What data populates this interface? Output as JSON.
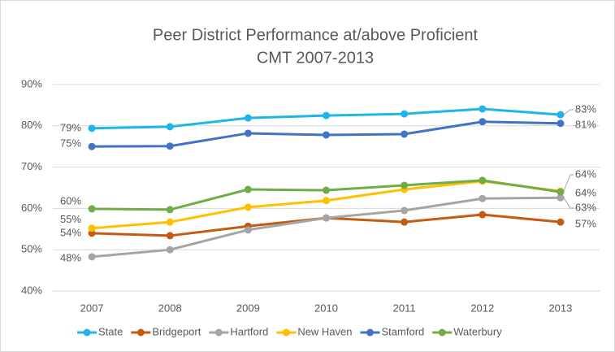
{
  "chart_data": {
    "type": "line",
    "title": "Peer District Performance at/above Proficient",
    "subtitle": "CMT 2007-2013",
    "categories": [
      "2007",
      "2008",
      "2009",
      "2010",
      "2011",
      "2012",
      "2013"
    ],
    "series": [
      {
        "name": "State",
        "color": "#1fb5e8",
        "values": [
          79.4,
          79.8,
          81.9,
          82.5,
          82.9,
          84.1,
          82.7
        ],
        "value_labels": [
          "79%",
          null,
          null,
          null,
          null,
          null,
          "83%"
        ]
      },
      {
        "name": "Bridgeport",
        "color": "#c55a11",
        "values": [
          54.0,
          53.4,
          55.7,
          57.7,
          56.7,
          58.5,
          56.7
        ],
        "value_labels": [
          "54%",
          null,
          null,
          null,
          null,
          null,
          "57%"
        ]
      },
      {
        "name": "Hartford",
        "color": "#a5a5a5",
        "values": [
          48.3,
          50.0,
          54.8,
          57.7,
          59.5,
          62.4,
          62.6
        ],
        "value_labels": [
          "48%",
          null,
          null,
          null,
          null,
          null,
          "63%"
        ]
      },
      {
        "name": "New Haven",
        "color": "#ffc000",
        "values": [
          55.2,
          56.7,
          60.3,
          61.9,
          64.6,
          66.6,
          64.2
        ],
        "value_labels": [
          "55%",
          null,
          null,
          null,
          null,
          null,
          "64%"
        ]
      },
      {
        "name": "Stamford",
        "color": "#4472c4",
        "values": [
          75.0,
          75.1,
          78.2,
          77.8,
          78.0,
          81.0,
          80.6
        ],
        "value_labels": [
          "75%",
          null,
          null,
          null,
          null,
          null,
          "81%"
        ]
      },
      {
        "name": "Waterbury",
        "color": "#70ad47",
        "values": [
          59.9,
          59.7,
          64.6,
          64.4,
          65.6,
          66.8,
          64.0
        ],
        "value_labels": [
          "60%",
          null,
          null,
          null,
          null,
          null,
          "64%"
        ]
      }
    ],
    "ylim": [
      40,
      90
    ],
    "yticks": [
      {
        "value": 40,
        "label": "40%"
      },
      {
        "value": 50,
        "label": "50%"
      },
      {
        "value": 60,
        "label": "60%"
      },
      {
        "value": 70,
        "label": "70%"
      },
      {
        "value": 80,
        "label": "80%"
      },
      {
        "value": 90,
        "label": "90%"
      }
    ],
    "grid": true,
    "legend": "bottom"
  }
}
